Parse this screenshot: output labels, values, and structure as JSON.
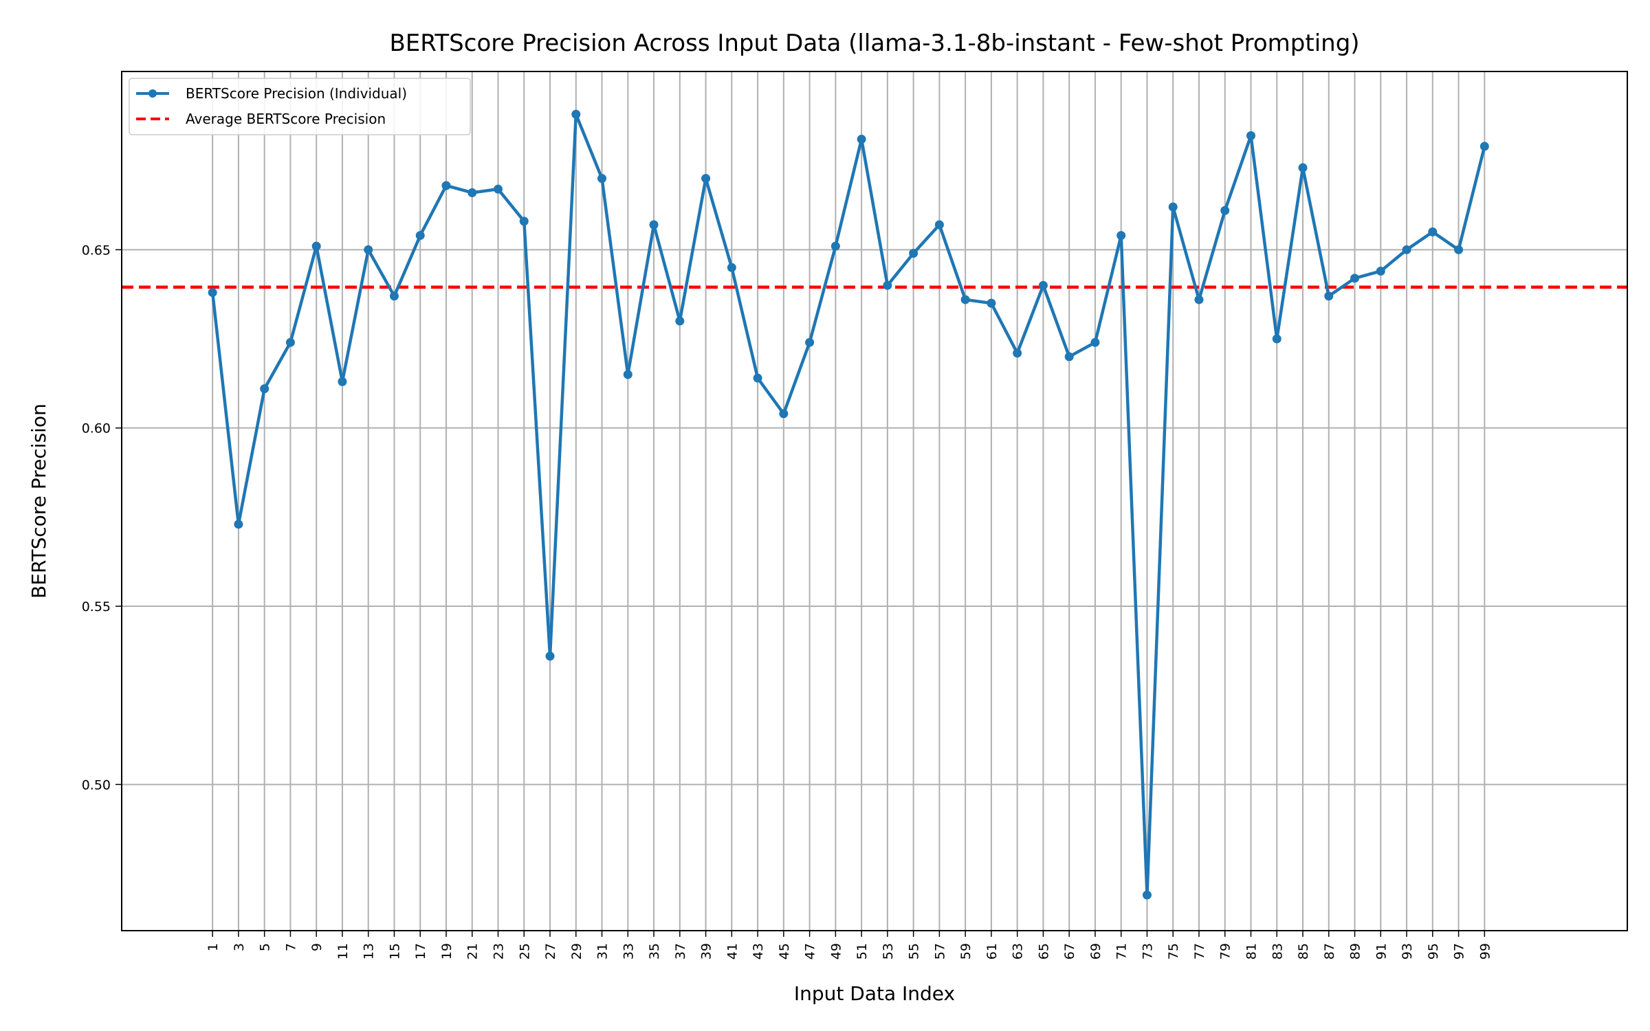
{
  "chart_data": {
    "type": "line",
    "title": "BERTScore Precision Across Input Data (llama-3.1-8b-instant - Few-shot Prompting)",
    "xlabel": "Input Data Index",
    "ylabel": "BERTScore Precision",
    "xlim": [
      -6,
      110
    ],
    "ylim": [
      0.459,
      0.7
    ],
    "yticks": [
      0.5,
      0.55,
      0.6,
      0.65
    ],
    "ytick_labels": [
      "0.50",
      "0.55",
      "0.60",
      "0.65"
    ],
    "xticks": [
      1,
      3,
      5,
      7,
      9,
      11,
      13,
      15,
      17,
      19,
      21,
      23,
      25,
      27,
      29,
      31,
      33,
      35,
      37,
      39,
      41,
      43,
      45,
      47,
      49,
      51,
      53,
      55,
      57,
      59,
      61,
      63,
      65,
      67,
      69,
      71,
      73,
      75,
      77,
      79,
      81,
      83,
      85,
      87,
      89,
      91,
      93,
      95,
      97,
      99
    ],
    "grid": true,
    "legend_position": "top-left",
    "series": [
      {
        "name": "BERTScore Precision (Individual)",
        "color": "#1f77b4",
        "style": "solid-with-markers",
        "x": [
          1,
          3,
          5,
          7,
          9,
          11,
          13,
          15,
          17,
          19,
          21,
          23,
          25,
          27,
          29,
          31,
          33,
          35,
          37,
          39,
          41,
          43,
          45,
          47,
          49,
          51,
          53,
          55,
          57,
          59,
          61,
          63,
          65,
          67,
          69,
          71,
          73,
          75,
          77,
          79,
          81,
          83,
          85,
          87,
          89,
          91,
          93,
          95,
          97,
          99
        ],
        "values": [
          0.638,
          0.573,
          0.611,
          0.624,
          0.651,
          0.613,
          0.65,
          0.637,
          0.654,
          0.668,
          0.666,
          0.667,
          0.658,
          0.536,
          0.688,
          0.67,
          0.615,
          0.657,
          0.63,
          0.67,
          0.645,
          0.614,
          0.604,
          0.624,
          0.651,
          0.681,
          0.64,
          0.649,
          0.657,
          0.636,
          0.635,
          0.621,
          0.64,
          0.62,
          0.624,
          0.654,
          0.469,
          0.662,
          0.636,
          0.661,
          0.682,
          0.625,
          0.673,
          0.637,
          0.642,
          0.644,
          0.65,
          0.655,
          0.65,
          0.679
        ]
      },
      {
        "name": "Average BERTScore Precision",
        "color": "#ff0000",
        "style": "dashed",
        "value": 0.6395
      }
    ]
  }
}
